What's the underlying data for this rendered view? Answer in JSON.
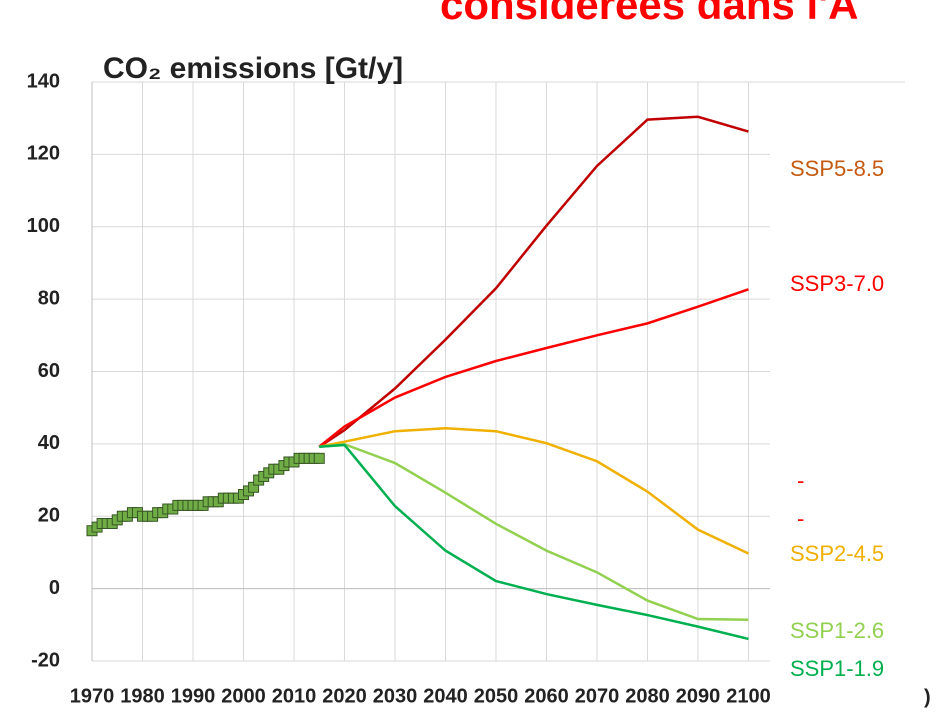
{
  "chart_data": {
    "type": "line",
    "header_text": "considérées dans l'A",
    "title": "CO₂ emissions [Gt/y]",
    "annotations": [
      "-",
      "-",
      ")"
    ],
    "xlim": [
      1970,
      2131
    ],
    "ylim": [
      -20,
      140
    ],
    "xticks": [
      1970,
      1980,
      1990,
      2000,
      2010,
      2020,
      2030,
      2040,
      2050,
      2060,
      2070,
      2080,
      2090,
      2100
    ],
    "yticks": [
      -20,
      0,
      20,
      40,
      60,
      80,
      100,
      120,
      140
    ],
    "grid": true,
    "series": [
      {
        "name": "SSP5-8.5",
        "color": "#c00000",
        "label_color": "#c55a11",
        "x": [
          2015,
          2020,
          2030,
          2040,
          2050,
          2060,
          2070,
          2080,
          2090,
          2100
        ],
        "values": [
          39.2,
          43.8,
          55.3,
          68.8,
          83,
          100.3,
          116.8,
          129.6,
          130.4,
          126.3
        ]
      },
      {
        "name": "SSP3-7.0",
        "color": "#ff0000",
        "label_color": "#ff0000",
        "x": [
          2015,
          2020,
          2030,
          2040,
          2050,
          2060,
          2070,
          2080,
          2090,
          2100
        ],
        "values": [
          39.2,
          44.8,
          52.8,
          58.5,
          62.9,
          66.5,
          70,
          73.3,
          77.9,
          82.7
        ]
      },
      {
        "name": "SSP2-4.5",
        "color": "#f0b000",
        "label_color": "#f0b000",
        "x": [
          2015,
          2020,
          2030,
          2040,
          2050,
          2060,
          2070,
          2080,
          2090,
          2100
        ],
        "values": [
          39.2,
          40.6,
          43.5,
          44.3,
          43.5,
          40.2,
          35.2,
          26.8,
          16.3,
          9.7
        ]
      },
      {
        "name": "SSP1-2.6",
        "color": "#92d050",
        "label_color": "#92d050",
        "x": [
          2015,
          2020,
          2030,
          2040,
          2050,
          2060,
          2070,
          2080,
          2090,
          2100
        ],
        "values": [
          39.2,
          39.9,
          34.7,
          26.5,
          17.9,
          10.5,
          4.5,
          -3.3,
          -8.4,
          -8.6
        ]
      },
      {
        "name": "SSP1-1.9",
        "color": "#00b050",
        "label_color": "#00b050",
        "x": [
          2015,
          2020,
          2030,
          2040,
          2050,
          2060,
          2070,
          2080,
          2090,
          2100
        ],
        "values": [
          39.2,
          39.7,
          22.8,
          10.5,
          2.1,
          -1.5,
          -4.5,
          -7.3,
          -10.5,
          -13.9
        ]
      }
    ],
    "historical": {
      "color": "#70ad47",
      "x": [
        1970,
        1971,
        1972,
        1973,
        1974,
        1975,
        1976,
        1977,
        1978,
        1979,
        1980,
        1981,
        1982,
        1983,
        1984,
        1985,
        1986,
        1987,
        1988,
        1989,
        1990,
        1991,
        1992,
        1993,
        1994,
        1995,
        1996,
        1997,
        1998,
        1999,
        2000,
        2001,
        2002,
        2003,
        2004,
        2005,
        2006,
        2007,
        2008,
        2009,
        2010,
        2011,
        2012,
        2013,
        2014,
        2015
      ],
      "values": [
        16,
        17,
        18,
        18,
        18,
        19,
        20,
        20,
        21,
        21,
        20,
        20,
        20,
        21,
        21,
        22,
        22,
        23,
        23,
        23,
        23,
        23,
        23,
        24,
        24,
        24,
        25,
        25,
        25,
        25,
        26,
        27,
        28,
        30,
        31,
        32,
        33,
        33,
        34,
        35,
        35,
        36,
        36,
        36,
        36,
        36
      ]
    }
  }
}
